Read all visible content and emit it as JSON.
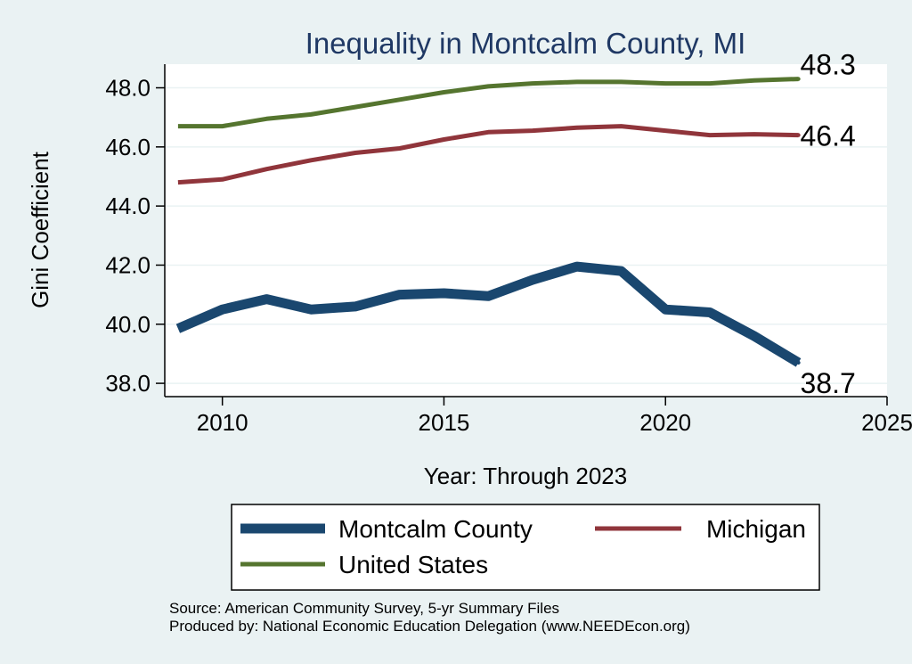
{
  "chart_data": {
    "type": "line",
    "title": "Inequality in Montcalm County, MI",
    "xlabel": "Year: Through 2023",
    "ylabel": "Gini Coefficient",
    "xlim": [
      2008.7,
      2025
    ],
    "ylim": [
      37.55,
      48.8
    ],
    "xticks": [
      2010,
      2015,
      2020,
      2025
    ],
    "yticks": [
      38.0,
      40.0,
      42.0,
      44.0,
      46.0,
      48.0
    ],
    "ytick_labels": [
      "38.0",
      "40.0",
      "42.0",
      "44.0",
      "46.0",
      "48.0"
    ],
    "grid": true,
    "legend_position": "bottom",
    "series": [
      {
        "name": "Montcalm County",
        "color": "#1a476f",
        "x": [
          2009,
          2010,
          2011,
          2012,
          2013,
          2014,
          2015,
          2016,
          2017,
          2018,
          2019,
          2020,
          2021,
          2022,
          2023
        ],
        "values": [
          39.85,
          40.5,
          40.85,
          40.5,
          40.6,
          41.0,
          41.05,
          40.95,
          41.5,
          41.95,
          41.8,
          40.5,
          40.4,
          39.6,
          38.7
        ],
        "end_label": "38.7"
      },
      {
        "name": "Michigan",
        "color": "#90353b",
        "x": [
          2009,
          2010,
          2011,
          2012,
          2013,
          2014,
          2015,
          2016,
          2017,
          2018,
          2019,
          2020,
          2021,
          2022,
          2023
        ],
        "values": [
          44.8,
          44.9,
          45.25,
          45.55,
          45.8,
          45.95,
          46.25,
          46.5,
          46.55,
          46.65,
          46.7,
          46.55,
          46.4,
          46.43,
          46.4
        ],
        "end_label": "46.4"
      },
      {
        "name": "United States",
        "color": "#55752f",
        "x": [
          2009,
          2010,
          2011,
          2012,
          2013,
          2014,
          2015,
          2016,
          2017,
          2018,
          2019,
          2020,
          2021,
          2022,
          2023
        ],
        "values": [
          46.7,
          46.7,
          46.95,
          47.1,
          47.35,
          47.6,
          47.85,
          48.05,
          48.15,
          48.2,
          48.2,
          48.15,
          48.15,
          48.25,
          48.3
        ],
        "end_label": "48.3"
      }
    ]
  },
  "notes": {
    "source": "Source: American Community Survey, 5-yr Summary Files",
    "producer": "Produced by: National Economic Education Delegation (www.NEEDEcon.org)"
  }
}
